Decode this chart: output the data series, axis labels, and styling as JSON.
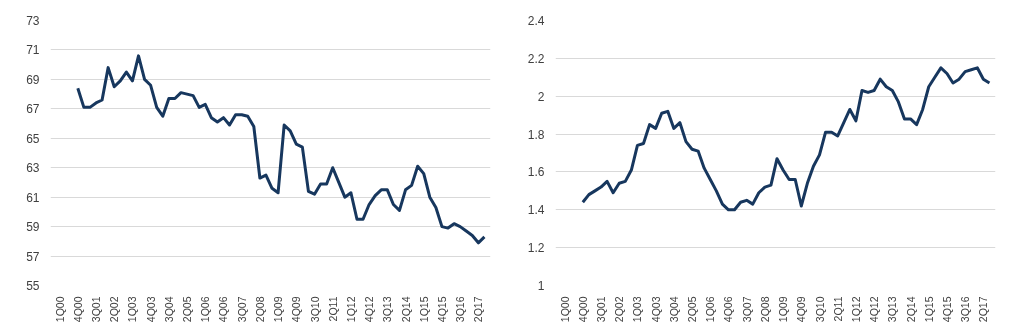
{
  "chart_data": [
    {
      "type": "line",
      "categories": [
        "1Q00",
        null,
        null,
        "4Q00",
        null,
        null,
        "3Q01",
        null,
        null,
        "2Q02",
        null,
        null,
        "1Q03",
        null,
        null,
        "4Q03",
        null,
        null,
        "3Q04",
        null,
        null,
        "2Q05",
        null,
        null,
        "1Q06",
        null,
        null,
        "4Q06",
        null,
        null,
        "3Q07",
        null,
        null,
        "2Q08",
        null,
        null,
        "1Q09",
        null,
        null,
        "4Q09",
        null,
        null,
        "3Q10",
        null,
        null,
        "2Q11",
        null,
        null,
        "1Q12",
        null,
        null,
        "4Q12",
        null,
        null,
        "3Q13",
        null,
        null,
        "2Q14",
        null,
        null,
        "1Q15",
        null,
        null,
        "4Q15",
        null,
        null,
        "3Q16",
        null,
        null,
        "2Q17",
        null
      ],
      "series": [
        {
          "color": "#17375e",
          "values": [
            null,
            null,
            null,
            68.4,
            67.1,
            67.1,
            67.4,
            67.6,
            69.8,
            68.5,
            68.9,
            69.5,
            68.9,
            70.6,
            69.0,
            68.6,
            67.1,
            66.5,
            67.7,
            67.7,
            68.1,
            68.0,
            67.9,
            67.1,
            67.3,
            66.4,
            66.1,
            66.4,
            65.9,
            66.6,
            66.6,
            66.5,
            65.8,
            62.3,
            62.5,
            61.6,
            61.3,
            65.9,
            65.5,
            64.6,
            64.4,
            61.4,
            61.2,
            61.9,
            61.9,
            63.0,
            62.0,
            61.0,
            61.3,
            59.5,
            59.5,
            60.5,
            61.1,
            61.5,
            61.5,
            60.5,
            60.1,
            61.5,
            61.8,
            63.1,
            62.6,
            61.0,
            60.3,
            59.0,
            58.9,
            59.2,
            59.0,
            58.7,
            58.4,
            57.9,
            58.3
          ]
        }
      ],
      "ylim": [
        55,
        73
      ],
      "yticks": [
        55,
        57,
        59,
        61,
        63,
        65,
        67,
        69,
        71,
        73
      ],
      "grid": "y",
      "marker": "none",
      "line_style": "solid"
    },
    {
      "type": "line",
      "categories": [
        "1Q00",
        null,
        null,
        "4Q00",
        null,
        null,
        "3Q01",
        null,
        null,
        "2Q02",
        null,
        null,
        "1Q03",
        null,
        null,
        "4Q03",
        null,
        null,
        "3Q04",
        null,
        null,
        "2Q05",
        null,
        null,
        "1Q06",
        null,
        null,
        "4Q06",
        null,
        null,
        "3Q07",
        null,
        null,
        "2Q08",
        null,
        null,
        "1Q09",
        null,
        null,
        "4Q09",
        null,
        null,
        "3Q10",
        null,
        null,
        "2Q11",
        null,
        null,
        "1Q12",
        null,
        null,
        "4Q12",
        null,
        null,
        "3Q13",
        null,
        null,
        "2Q14",
        null,
        null,
        "1Q15",
        null,
        null,
        "4Q15",
        null,
        null,
        "3Q16",
        null,
        null,
        "2Q17",
        null
      ],
      "series": [
        {
          "color": "#17375e",
          "values": [
            null,
            null,
            null,
            1.44,
            1.48,
            1.5,
            1.52,
            1.55,
            1.49,
            1.54,
            1.55,
            1.61,
            1.74,
            1.75,
            1.85,
            1.83,
            1.91,
            1.92,
            1.83,
            1.86,
            1.76,
            1.72,
            1.71,
            1.62,
            1.56,
            1.5,
            1.43,
            1.4,
            1.4,
            1.44,
            1.45,
            1.43,
            1.49,
            1.52,
            1.53,
            1.67,
            1.61,
            1.56,
            1.56,
            1.42,
            1.54,
            1.63,
            1.69,
            1.81,
            1.81,
            1.79,
            1.86,
            1.93,
            1.87,
            2.03,
            2.02,
            2.03,
            2.09,
            2.05,
            2.03,
            1.97,
            1.88,
            1.88,
            1.85,
            1.93,
            2.05,
            2.1,
            2.15,
            2.12,
            2.07,
            2.09,
            2.13,
            2.14,
            2.15,
            2.09,
            2.07
          ]
        }
      ],
      "ylim": [
        1,
        2.4
      ],
      "yticks": [
        1,
        1.2,
        1.4,
        1.6,
        1.8,
        2,
        2.2,
        2.4
      ],
      "grid": "y",
      "marker": "none",
      "line_style": "solid"
    }
  ]
}
